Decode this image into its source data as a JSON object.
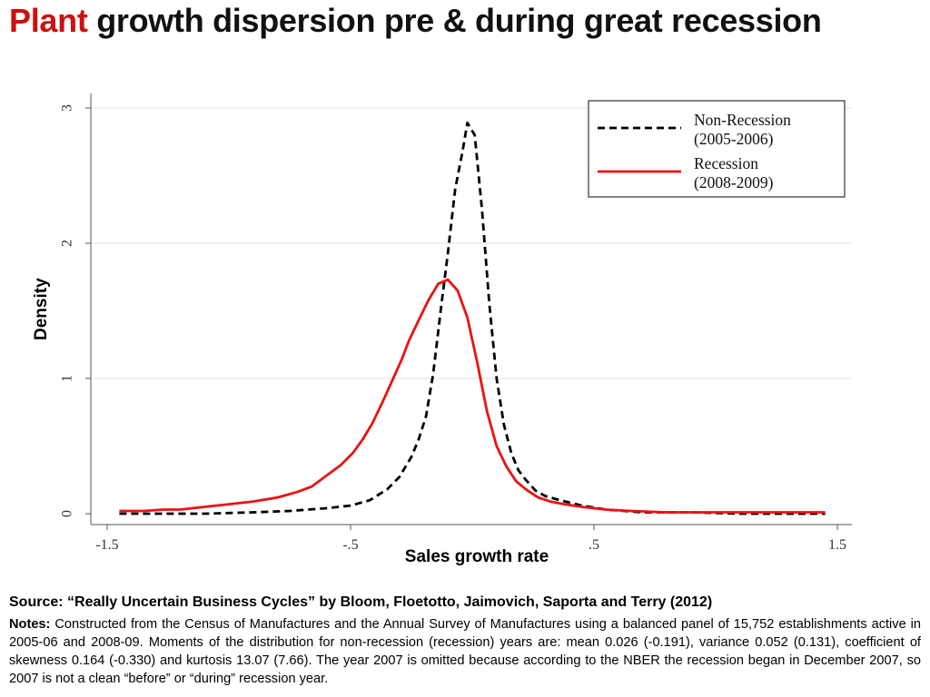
{
  "slide": {
    "title_accent": "Plant",
    "title_rest": "growth dispersion pre & during great recession",
    "accent_color": "#cc1111",
    "source": "Source: “Really Uncertain Business Cycles” by Bloom, Floetotto, Jaimovich, Saporta and Terry (2012)",
    "notes_label": "Notes:",
    "notes_text": "Constructed from the Census of Manufactures and the Annual Survey of Manufactures using a balanced panel of 15,752 establishments active in 2005-06 and 2008-09. Moments of the distribution for non-recession (recession) years are: mean 0.026 (-0.191), variance 0.052 (0.131), coefficient of skewness 0.164 (-0.330) and kurtosis 13.07 (7.66). The year 2007 is omitted because according to the NBER the recession began in December 2007, so 2007 is not a clean “before” or “during” recession year."
  },
  "chart_data": {
    "type": "line",
    "xlabel": "Sales growth rate",
    "ylabel": "Density",
    "xlim": [
      -1.5,
      1.5
    ],
    "ylim": [
      0,
      3
    ],
    "x_ticks": [
      -1.5,
      -0.5,
      0.5,
      1.5
    ],
    "x_tick_labels": [
      "-1.5",
      "-.5",
      ".5",
      "1.5"
    ],
    "y_ticks": [
      0,
      1,
      2,
      3
    ],
    "y_tick_labels": [
      "0",
      "1",
      "2",
      "3"
    ],
    "grid": "horizontal",
    "legend_position": "top-right",
    "series": [
      {
        "name": "Non-Recession (2005-2006)",
        "legend_lines": [
          "Non-Recession",
          "(2005-2006)"
        ],
        "color": "#000000",
        "dash": "dashed",
        "x": [
          -1.45,
          -1.3,
          -1.1,
          -0.9,
          -0.75,
          -0.6,
          -0.5,
          -0.42,
          -0.35,
          -0.3,
          -0.25,
          -0.22,
          -0.19,
          -0.16,
          -0.13,
          -0.1,
          -0.07,
          -0.04,
          -0.02,
          0.01,
          0.04,
          0.07,
          0.1,
          0.13,
          0.16,
          0.19,
          0.22,
          0.26,
          0.3,
          0.36,
          0.45,
          0.55,
          0.7,
          0.9,
          1.1,
          1.3,
          1.45
        ],
        "y": [
          0.0,
          0.0,
          0.0,
          0.01,
          0.02,
          0.04,
          0.06,
          0.1,
          0.18,
          0.27,
          0.42,
          0.55,
          0.72,
          1.04,
          1.5,
          1.93,
          2.4,
          2.68,
          2.89,
          2.8,
          2.25,
          1.55,
          1.0,
          0.66,
          0.45,
          0.32,
          0.25,
          0.17,
          0.13,
          0.1,
          0.06,
          0.03,
          0.01,
          0.01,
          0.0,
          0.0,
          0.0
        ]
      },
      {
        "name": "Recession (2008-2009)",
        "legend_lines": [
          "Recession",
          "(2008-2009)"
        ],
        "color": "#ee1111",
        "dash": "solid",
        "x": [
          -1.45,
          -1.35,
          -1.27,
          -1.2,
          -1.1,
          -1.0,
          -0.9,
          -0.8,
          -0.72,
          -0.66,
          -0.6,
          -0.54,
          -0.49,
          -0.45,
          -0.41,
          -0.37,
          -0.33,
          -0.29,
          -0.26,
          -0.22,
          -0.18,
          -0.14,
          -0.1,
          -0.06,
          -0.02,
          0.02,
          0.06,
          0.1,
          0.14,
          0.18,
          0.22,
          0.27,
          0.32,
          0.38,
          0.45,
          0.55,
          0.65,
          0.8,
          1.0,
          1.2,
          1.35,
          1.45
        ],
        "y": [
          0.02,
          0.02,
          0.03,
          0.03,
          0.05,
          0.07,
          0.09,
          0.12,
          0.16,
          0.2,
          0.28,
          0.36,
          0.45,
          0.55,
          0.67,
          0.82,
          0.98,
          1.14,
          1.28,
          1.43,
          1.58,
          1.7,
          1.73,
          1.65,
          1.45,
          1.12,
          0.76,
          0.5,
          0.35,
          0.24,
          0.18,
          0.12,
          0.09,
          0.07,
          0.05,
          0.03,
          0.02,
          0.01,
          0.01,
          0.01,
          0.01,
          0.01
        ]
      }
    ]
  }
}
